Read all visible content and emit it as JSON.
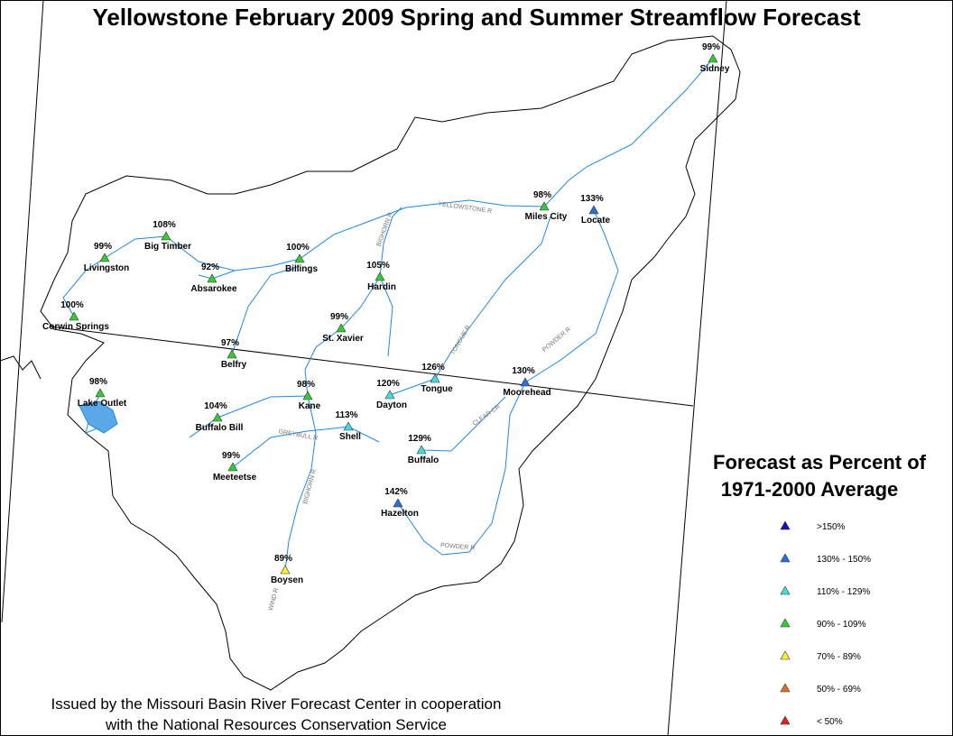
{
  "title": "Yellowstone February 2009 Spring and Summer Streamflow Forecast",
  "stations": [
    {
      "name": "Sidney",
      "percent": "99%",
      "color": "#33cc33"
    },
    {
      "name": "Miles City",
      "percent": "98%",
      "color": "#33cc33"
    },
    {
      "name": "Locate",
      "percent": "133%",
      "color": "#2a6fd8"
    },
    {
      "name": "Big Timber",
      "percent": "108%",
      "color": "#33cc33"
    },
    {
      "name": "Livingston",
      "percent": "99%",
      "color": "#33cc33"
    },
    {
      "name": "Absarokee",
      "percent": "92%",
      "color": "#33cc33"
    },
    {
      "name": "Billings",
      "percent": "100%",
      "color": "#33cc33"
    },
    {
      "name": "Hardin",
      "percent": "105%",
      "color": "#33cc33"
    },
    {
      "name": "Corwin Springs",
      "percent": "100%",
      "color": "#33cc33"
    },
    {
      "name": "St. Xavier",
      "percent": "99%",
      "color": "#33cc33"
    },
    {
      "name": "Belfry",
      "percent": "97%",
      "color": "#33cc33"
    },
    {
      "name": "Tongue",
      "percent": "126%",
      "color": "#44dddd"
    },
    {
      "name": "Moorehead",
      "percent": "130%",
      "color": "#2a6fd8"
    },
    {
      "name": "Lake Outlet",
      "percent": "98%",
      "color": "#33cc33"
    },
    {
      "name": "Kane",
      "percent": "98%",
      "color": "#33cc33"
    },
    {
      "name": "Dayton",
      "percent": "120%",
      "color": "#44dddd"
    },
    {
      "name": "Buffalo Bill",
      "percent": "104%",
      "color": "#33cc33"
    },
    {
      "name": "Shell",
      "percent": "113%",
      "color": "#44dddd"
    },
    {
      "name": "Buffalo",
      "percent": "129%",
      "color": "#44dddd"
    },
    {
      "name": "Meeteetse",
      "percent": "99%",
      "color": "#33cc33"
    },
    {
      "name": "Hazelton",
      "percent": "142%",
      "color": "#2a6fd8"
    },
    {
      "name": "Boysen",
      "percent": "89%",
      "color": "#ffee33"
    }
  ],
  "rivers": [
    "YELLOWSTONE R",
    "BIGHORN R",
    "TONGUE R",
    "POWDER R",
    "CLEAR CR",
    "GREYBULL R",
    "BIGHORN R",
    "POWDER R",
    "WIND R"
  ],
  "legend": {
    "title": [
      "Forecast as Percent of",
      "1971-2000 Average"
    ],
    "items": [
      {
        "label": ">150%",
        "color": "#1010c0"
      },
      {
        "label": "130% - 150%",
        "color": "#2a6fd8"
      },
      {
        "label": "110% - 129%",
        "color": "#44dddd"
      },
      {
        "label": "90% - 109%",
        "color": "#33cc33"
      },
      {
        "label": "70% - 89%",
        "color": "#ffee33"
      },
      {
        "label": "50% - 69%",
        "color": "#e07020"
      },
      {
        "label": "< 50%",
        "color": "#e02020"
      }
    ]
  },
  "footer": [
    "Issued by the Missouri Basin River Forecast Center in cooperation",
    "with the National Resources Conservation Service"
  ]
}
